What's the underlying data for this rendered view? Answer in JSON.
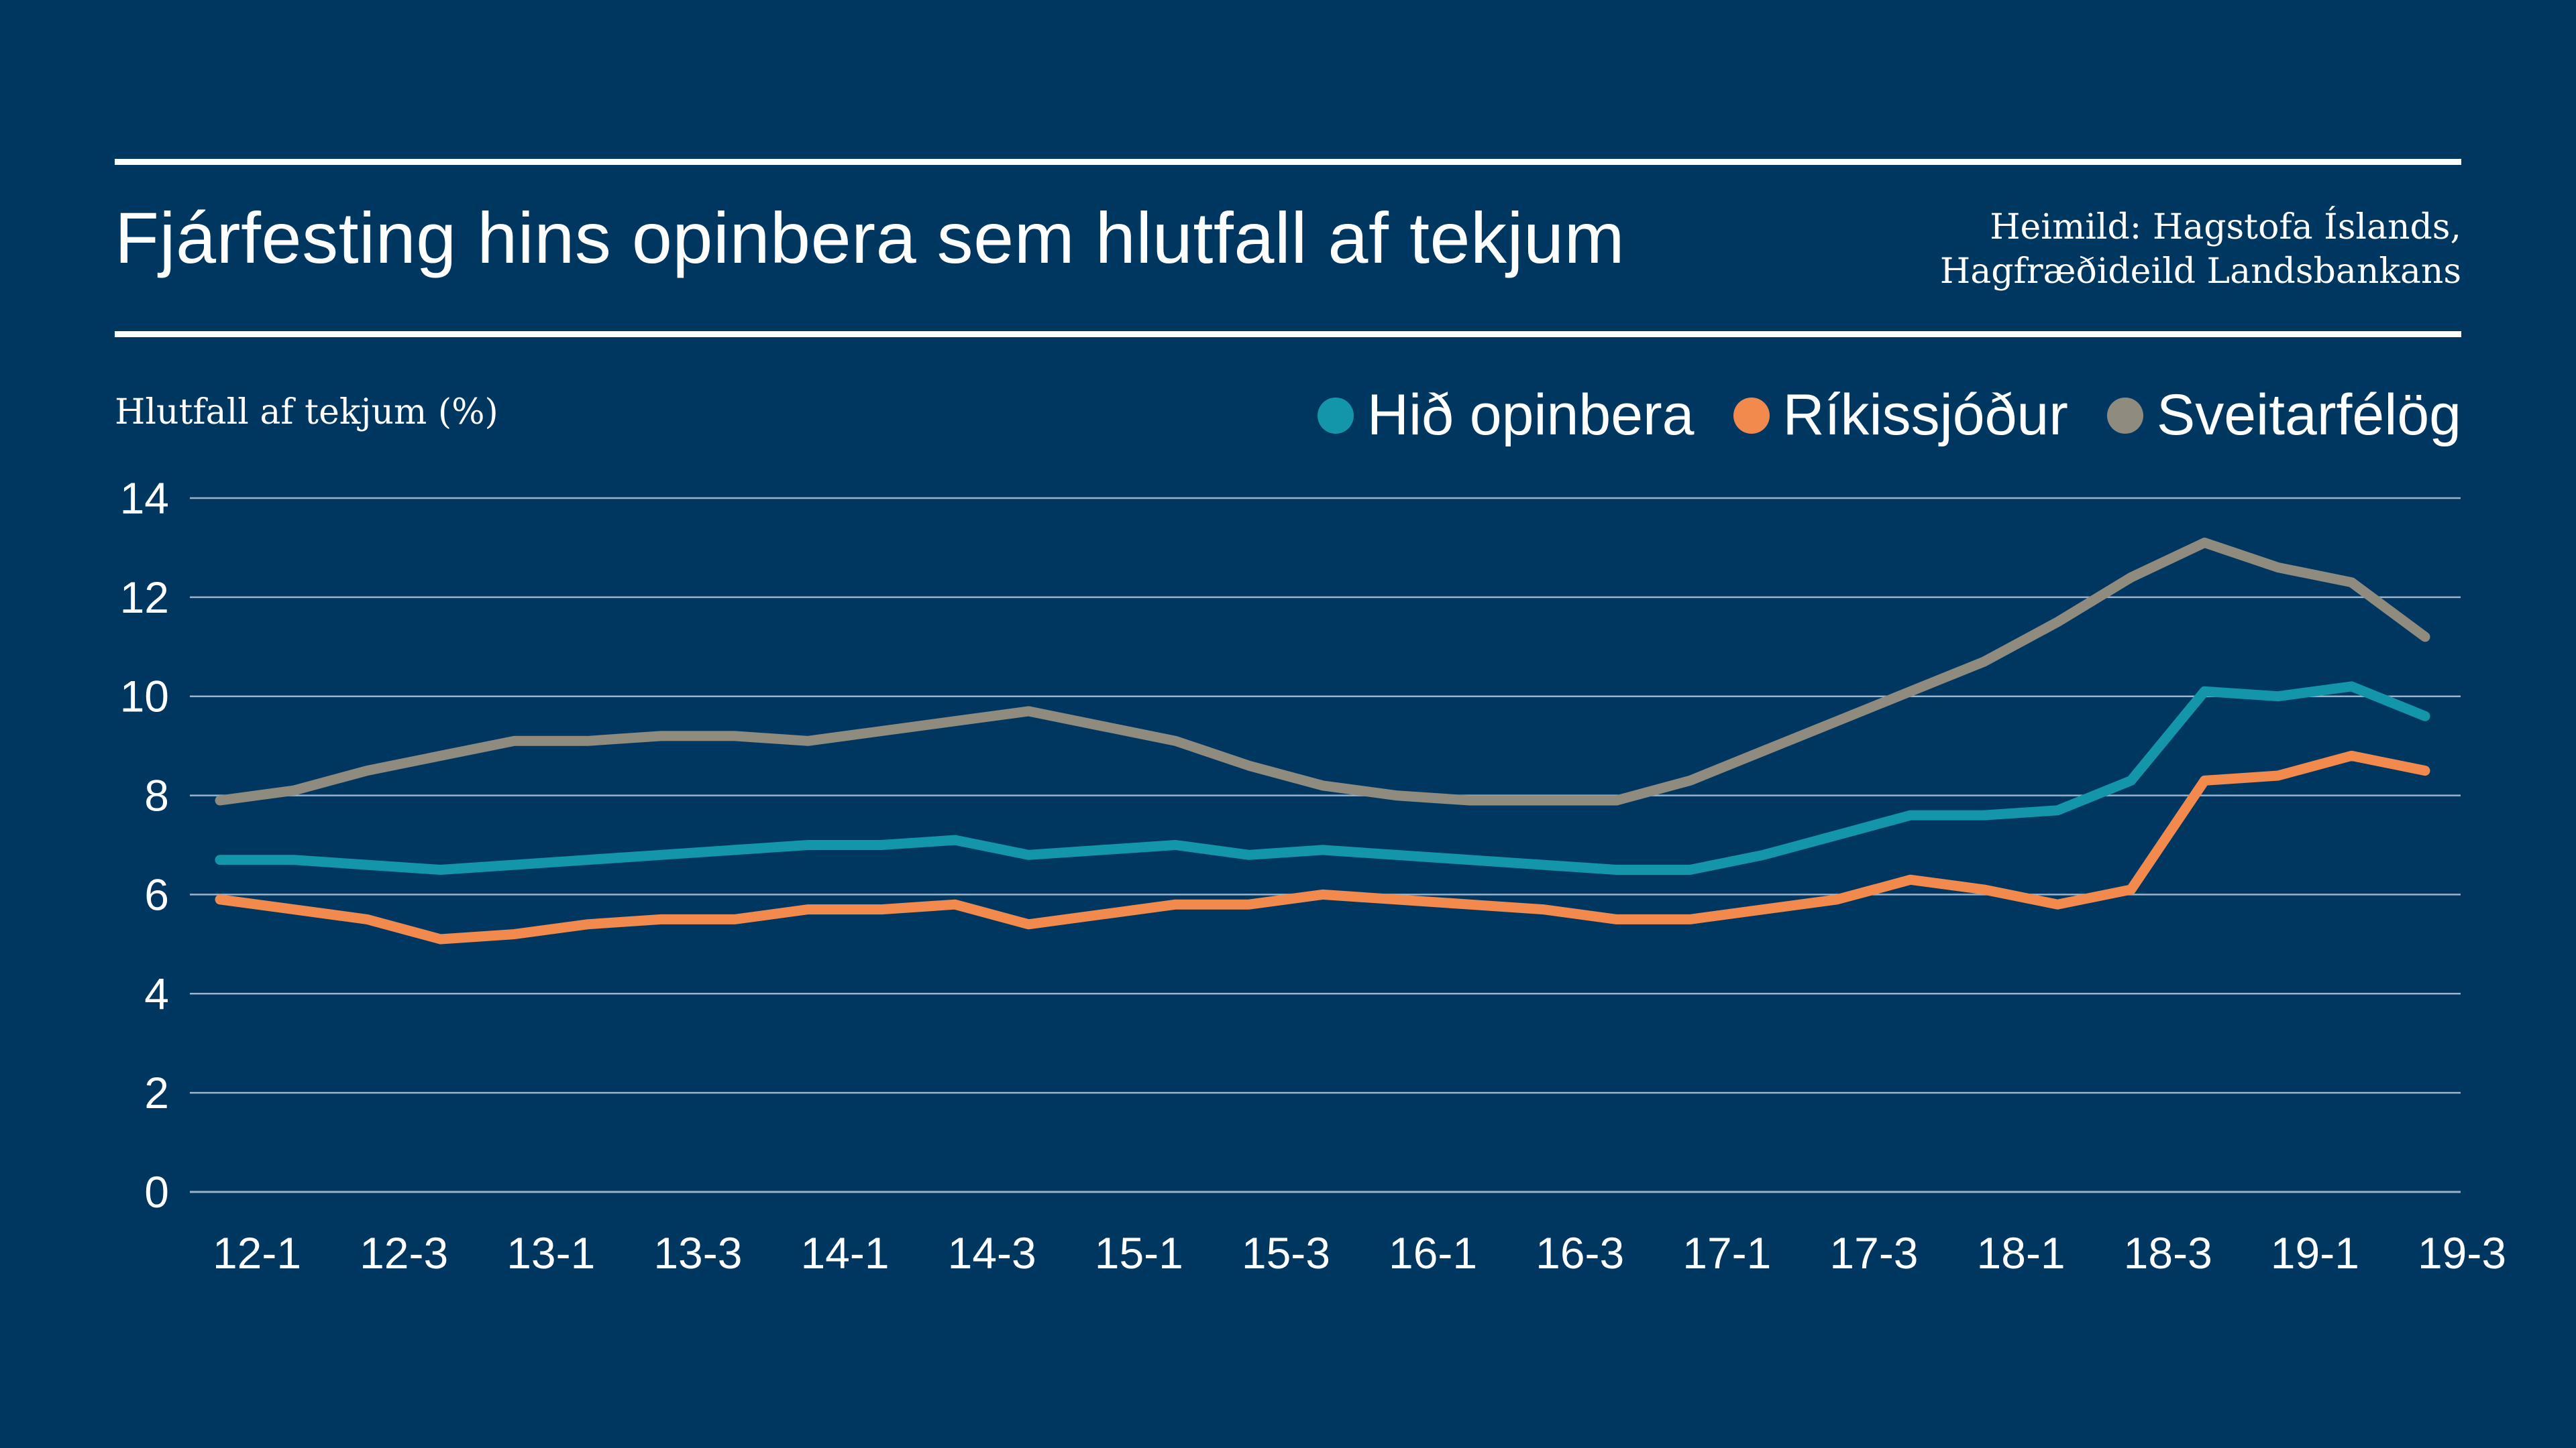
{
  "header": {
    "title": "Fjárfesting hins opinbera sem hlutfall af tekjum",
    "source_line1": "Heimild: Hagstofa Íslands,",
    "source_line2": "Hagfræðideild Landsbankans"
  },
  "colors": {
    "background": "#003761",
    "text": "#ffffff",
    "gridline": "#9fb3c8"
  },
  "chart_data": {
    "type": "line",
    "title": "Fjárfesting hins opinbera sem hlutfall af tekjum",
    "ylabel": "Hlutfall af tekjum (%)",
    "xlabel": "",
    "ylim": [
      0,
      14
    ],
    "yticks": [
      0,
      2,
      4,
      6,
      8,
      10,
      12,
      14
    ],
    "grid": true,
    "legend_position": "top-right",
    "x": [
      "12-1",
      "12-2",
      "12-3",
      "12-4",
      "13-1",
      "13-2",
      "13-3",
      "13-4",
      "14-1",
      "14-2",
      "14-3",
      "14-4",
      "15-1",
      "15-2",
      "15-3",
      "15-4",
      "16-1",
      "16-2",
      "16-3",
      "16-4",
      "17-1",
      "17-2",
      "17-3",
      "17-4",
      "18-1",
      "18-2",
      "18-3",
      "18-4",
      "19-1",
      "19-2",
      "19-3"
    ],
    "xtick_labels": [
      "12-1",
      "12-3",
      "13-1",
      "13-3",
      "14-1",
      "14-3",
      "15-1",
      "15-3",
      "16-1",
      "16-3",
      "17-1",
      "17-3",
      "18-1",
      "18-3",
      "19-1",
      "19-3"
    ],
    "series": [
      {
        "name": "Hið opinbera",
        "color": "#1496aa",
        "values": [
          6.7,
          6.7,
          6.6,
          6.5,
          6.6,
          6.7,
          6.8,
          6.9,
          7.0,
          7.0,
          7.1,
          6.8,
          6.9,
          7.0,
          6.8,
          6.9,
          6.8,
          6.7,
          6.6,
          6.5,
          6.5,
          6.8,
          7.2,
          7.6,
          7.6,
          7.7,
          8.3,
          10.1,
          10.0,
          10.2,
          9.6
        ]
      },
      {
        "name": "Ríkissjóður",
        "color": "#f28a4e",
        "values": [
          5.9,
          5.7,
          5.5,
          5.1,
          5.2,
          5.4,
          5.5,
          5.5,
          5.7,
          5.7,
          5.8,
          5.4,
          5.6,
          5.8,
          5.8,
          6.0,
          5.9,
          5.8,
          5.7,
          5.5,
          5.5,
          5.7,
          5.9,
          6.3,
          6.1,
          5.8,
          6.1,
          8.3,
          8.4,
          8.8,
          8.5
        ]
      },
      {
        "name": "Sveitarfélög",
        "color": "#8f8b7f",
        "values": [
          7.9,
          8.1,
          8.5,
          8.8,
          9.1,
          9.1,
          9.2,
          9.2,
          9.1,
          9.3,
          9.5,
          9.7,
          9.4,
          9.1,
          8.6,
          8.2,
          8.0,
          7.9,
          7.9,
          7.9,
          8.3,
          8.9,
          9.5,
          10.1,
          10.7,
          11.5,
          12.4,
          13.1,
          12.6,
          12.3,
          11.2
        ]
      }
    ]
  }
}
